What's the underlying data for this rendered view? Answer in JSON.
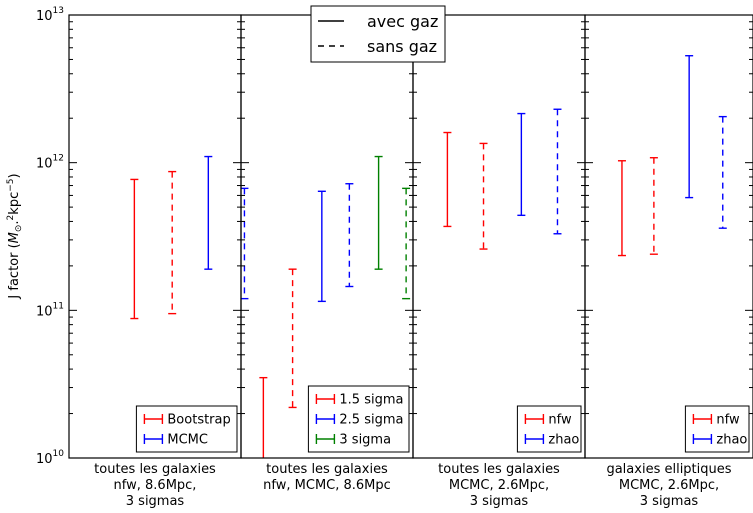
{
  "chart_data": {
    "type": "errorbar",
    "ylabel_prefix": "J factor (",
    "ylabel_unit_main": "M",
    "ylabel_unit_sub": "⊙",
    "ylabel_unit_sep": ".",
    "ylabel_unit_sup1": "2",
    "ylabel_unit_tail": "kpc",
    "ylabel_unit_sup2": "−5",
    "ylabel_suffix": ")",
    "yscale": "log",
    "ylim": [
      10000000000.0,
      10000000000000.0
    ],
    "yticks": [
      {
        "base": "10",
        "exp": "10",
        "value": 10000000000.0
      },
      {
        "base": "10",
        "exp": "11",
        "value": 100000000000.0
      },
      {
        "base": "10",
        "exp": "12",
        "value": 1000000000000.0
      },
      {
        "base": "10",
        "exp": "13",
        "value": 10000000000000.0
      }
    ],
    "colors": {
      "red": "#ff0000",
      "blue": "#0000ff",
      "green": "#008000"
    },
    "style_legend": [
      {
        "label": "avec gaz",
        "dash": "solid"
      },
      {
        "label": "sans gaz",
        "dash": "dashed"
      }
    ],
    "panels": [
      {
        "xlabel": [
          "toutes les galaxies",
          "nfw, 8.6Mpc,",
          "3 sigmas"
        ],
        "legend": [
          {
            "label": "Bootstrap",
            "color": "red"
          },
          {
            "label": "MCMC",
            "color": "blue"
          }
        ],
        "bars": [
          {
            "slot": 0.38,
            "low": 88000000000.0,
            "high": 770000000000.0,
            "color": "red",
            "dash": "solid"
          },
          {
            "slot": 0.6,
            "low": 95000000000.0,
            "high": 870000000000.0,
            "color": "red",
            "dash": "dashed"
          },
          {
            "slot": 0.81,
            "low": 190000000000.0,
            "high": 1100000000000.0,
            "color": "blue",
            "dash": "solid"
          },
          {
            "slot": 1.02,
            "low": 120000000000.0,
            "high": 670000000000.0,
            "color": "blue",
            "dash": "dashed"
          }
        ]
      },
      {
        "xlabel": [
          "toutes les galaxies",
          "nfw, MCMC, 8.6Mpc"
        ],
        "legend": [
          {
            "label": "1.5 sigma",
            "color": "red"
          },
          {
            "label": "2.5 sigma",
            "color": "blue"
          },
          {
            "label": "3 sigma",
            "color": "green"
          }
        ],
        "bars": [
          {
            "slot": 0.13,
            "low": 10000000000.0,
            "high": 35000000000.0,
            "color": "red",
            "dash": "solid"
          },
          {
            "slot": 0.3,
            "low": 22000000000.0,
            "high": 190000000000.0,
            "color": "red",
            "dash": "dashed"
          },
          {
            "slot": 0.47,
            "low": 115000000000.0,
            "high": 640000000000.0,
            "color": "blue",
            "dash": "solid"
          },
          {
            "slot": 0.63,
            "low": 145000000000.0,
            "high": 720000000000.0,
            "color": "blue",
            "dash": "dashed"
          },
          {
            "slot": 0.8,
            "low": 190000000000.0,
            "high": 1100000000000.0,
            "color": "green",
            "dash": "solid"
          },
          {
            "slot": 0.96,
            "low": 120000000000.0,
            "high": 670000000000.0,
            "color": "green",
            "dash": "dashed"
          }
        ]
      },
      {
        "xlabel": [
          "toutes les galaxies",
          "MCMC, 2.6Mpc,",
          "3 sigmas"
        ],
        "legend": [
          {
            "label": "nfw",
            "color": "red"
          },
          {
            "label": "zhao",
            "color": "blue"
          }
        ],
        "bars": [
          {
            "slot": 0.2,
            "low": 370000000000.0,
            "high": 1600000000000.0,
            "color": "red",
            "dash": "solid"
          },
          {
            "slot": 0.41,
            "low": 260000000000.0,
            "high": 1350000000000.0,
            "color": "red",
            "dash": "dashed"
          },
          {
            "slot": 0.63,
            "low": 440000000000.0,
            "high": 2150000000000.0,
            "color": "blue",
            "dash": "solid"
          },
          {
            "slot": 0.84,
            "low": 330000000000.0,
            "high": 2300000000000.0,
            "color": "blue",
            "dash": "dashed"
          }
        ]
      },
      {
        "xlabel": [
          "galaxies elliptiques",
          "MCMC, 2.6Mpc,",
          "3 sigmas"
        ],
        "legend": [
          {
            "label": "nfw",
            "color": "red"
          },
          {
            "label": "zhao",
            "color": "blue"
          }
        ],
        "bars": [
          {
            "slot": 0.22,
            "low": 235000000000.0,
            "high": 1030000000000.0,
            "color": "red",
            "dash": "solid"
          },
          {
            "slot": 0.41,
            "low": 240000000000.0,
            "high": 1080000000000.0,
            "color": "red",
            "dash": "dashed"
          },
          {
            "slot": 0.62,
            "low": 580000000000.0,
            "high": 5300000000000.0,
            "color": "blue",
            "dash": "solid"
          },
          {
            "slot": 0.82,
            "low": 360000000000.0,
            "high": 2050000000000.0,
            "color": "blue",
            "dash": "dashed"
          }
        ]
      }
    ]
  }
}
